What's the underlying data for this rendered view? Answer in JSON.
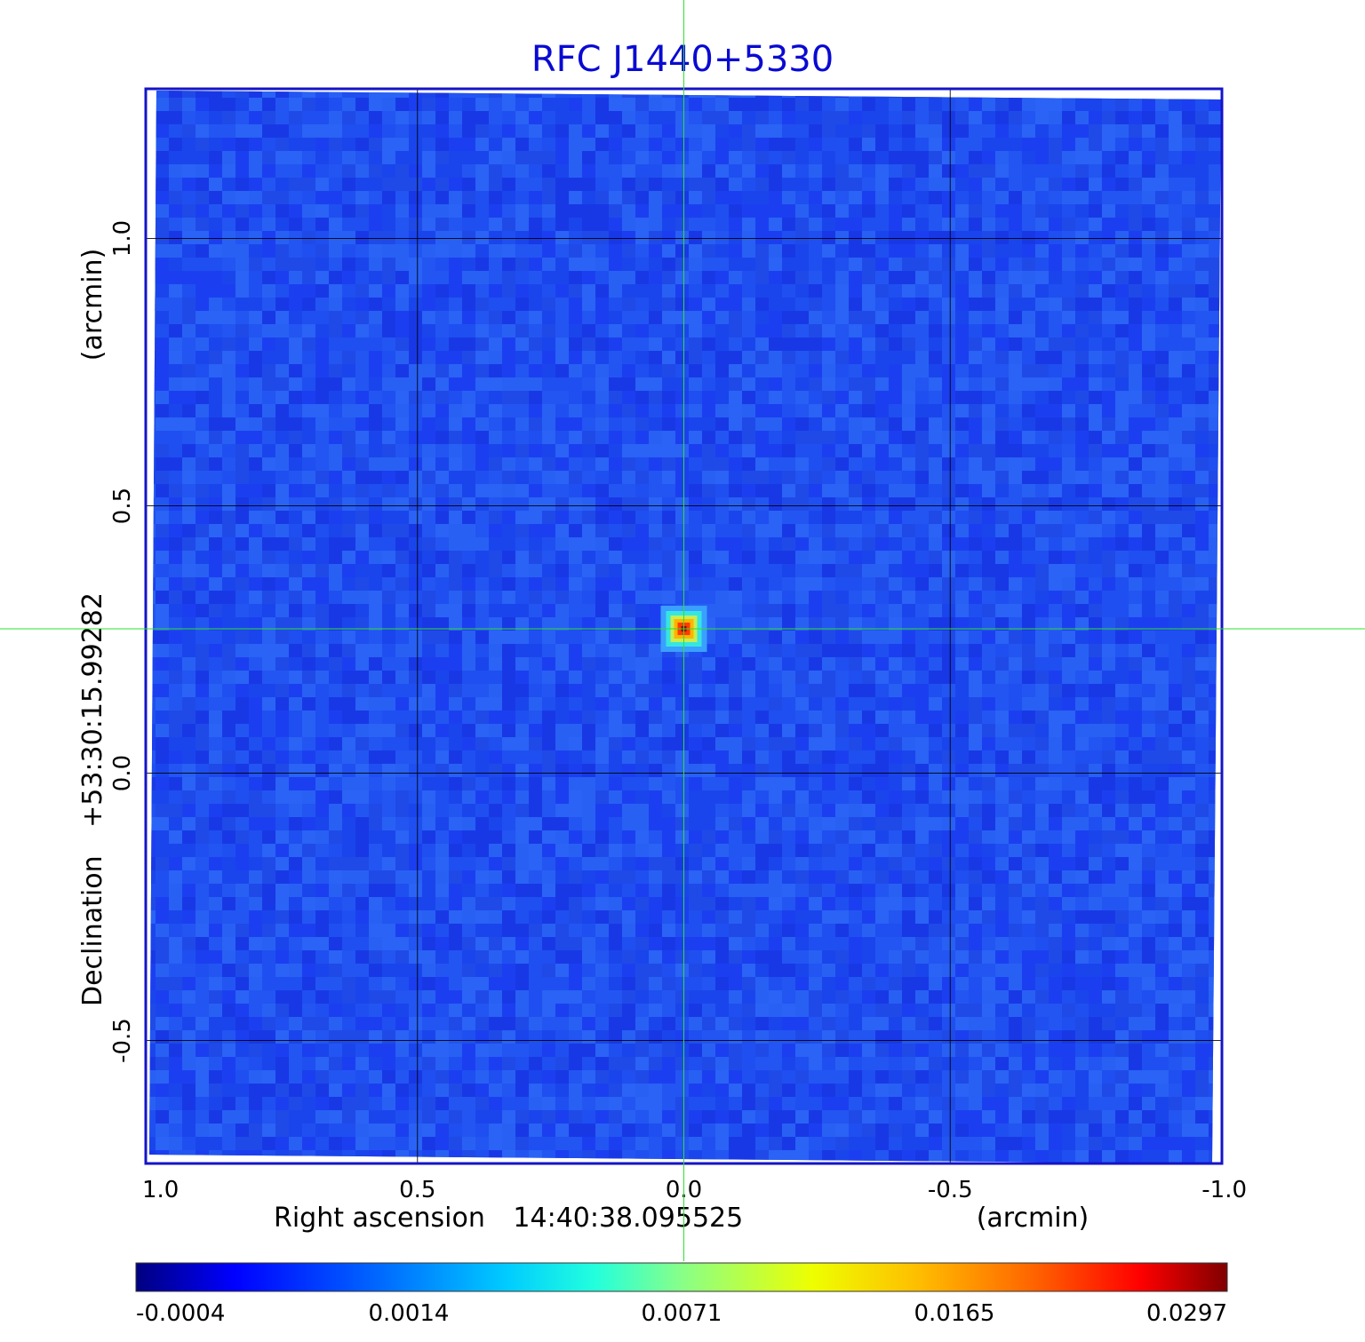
{
  "chart_data": {
    "type": "heatmap",
    "title": "RFC J1440+5330",
    "xlabel": {
      "prefix": "Right ascension",
      "center": "14:40:38.095525",
      "unit": "(arcmin)"
    },
    "ylabel": {
      "prefix": "Declination",
      "center": "+53:30:15.99282",
      "unit": "(arcmin)"
    },
    "x_ticks": [
      {
        "label": "1.0",
        "value": 1.0
      },
      {
        "label": "0.5",
        "value": 0.5
      },
      {
        "label": "0.0",
        "value": 0.0
      },
      {
        "label": "-0.5",
        "value": -0.5
      },
      {
        "label": "-1.0",
        "value": -1.0
      }
    ],
    "y_ticks": [
      {
        "label": "1.0",
        "value": 1.0
      },
      {
        "label": "0.5",
        "value": 0.5
      },
      {
        "label": "0.0",
        "value": 0.0
      },
      {
        "label": "-0.5",
        "value": -0.5
      }
    ],
    "xlim": [
      1.01,
      -1.01
    ],
    "ylim": [
      -0.73,
      1.28
    ],
    "grid": true,
    "crosshair": {
      "x": 0.0,
      "y": 0.27
    },
    "source": {
      "x": 0.0,
      "y": 0.27,
      "peak": 0.0297
    },
    "colorbar": {
      "ticks": [
        "-0.0004",
        "0.0014",
        "0.0071",
        "0.0165",
        "0.0297"
      ],
      "colormap": [
        "#000080",
        "#0000ff",
        "#0080ff",
        "#00ffff",
        "#80ff80",
        "#ffff00",
        "#ff8000",
        "#ff0000",
        "#800000"
      ]
    },
    "background_color": "#1f4ff0"
  }
}
